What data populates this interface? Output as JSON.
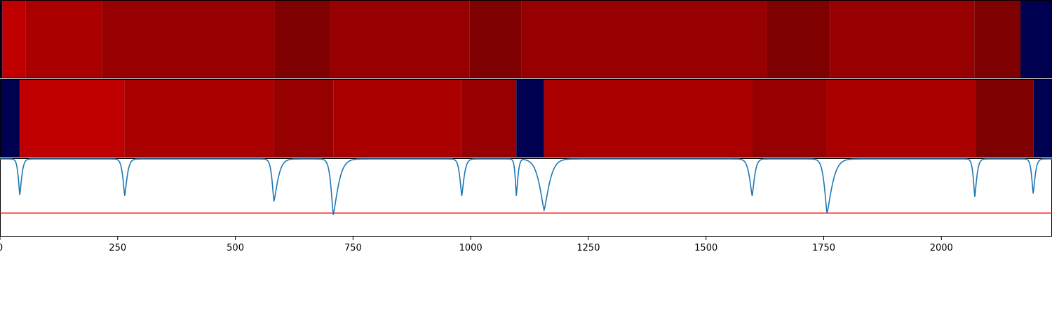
{
  "chart_data": [
    {
      "type": "heatmap",
      "panel": "top",
      "x_range": [
        0,
        2235
      ],
      "segments": [
        {
          "x0": 0,
          "x1": 5,
          "color": "#000050"
        },
        {
          "x0": 5,
          "x1": 55,
          "color": "#c00000"
        },
        {
          "x0": 55,
          "x1": 217,
          "color": "#aa0000"
        },
        {
          "x0": 217,
          "x1": 584,
          "color": "#960000"
        },
        {
          "x0": 584,
          "x1": 701,
          "color": "#7e0000"
        },
        {
          "x0": 701,
          "x1": 998,
          "color": "#960000"
        },
        {
          "x0": 998,
          "x1": 1108,
          "color": "#7e0000"
        },
        {
          "x0": 1108,
          "x1": 1630,
          "color": "#960000"
        },
        {
          "x0": 1630,
          "x1": 1763,
          "color": "#7e0000"
        },
        {
          "x0": 1763,
          "x1": 2070,
          "color": "#960000"
        },
        {
          "x0": 2070,
          "x1": 2168,
          "color": "#7e0000"
        },
        {
          "x0": 2168,
          "x1": 2235,
          "color": "#000050"
        }
      ]
    },
    {
      "type": "heatmap",
      "panel": "middle",
      "x_range": [
        0,
        2235
      ],
      "segments": [
        {
          "x0": 0,
          "x1": 42,
          "color": "#000050"
        },
        {
          "x0": 42,
          "x1": 264,
          "color": "#c00000"
        },
        {
          "x0": 264,
          "x1": 582,
          "color": "#aa0000"
        },
        {
          "x0": 582,
          "x1": 708,
          "color": "#960000"
        },
        {
          "x0": 708,
          "x1": 980,
          "color": "#aa0000"
        },
        {
          "x0": 980,
          "x1": 1097,
          "color": "#960000"
        },
        {
          "x0": 1097,
          "x1": 1156,
          "color": "#000050"
        },
        {
          "x0": 1156,
          "x1": 1598,
          "color": "#aa0000"
        },
        {
          "x0": 1598,
          "x1": 1756,
          "color": "#960000"
        },
        {
          "x0": 1756,
          "x1": 2072,
          "color": "#aa0000"
        },
        {
          "x0": 2072,
          "x1": 2196,
          "color": "#7e0000"
        },
        {
          "x0": 2196,
          "x1": 2235,
          "color": "#000050"
        }
      ]
    },
    {
      "type": "line",
      "panel": "bottom",
      "x_range": [
        0,
        2235
      ],
      "y_range": [
        0,
        1
      ],
      "baseline": 0.99,
      "threshold": 0.3,
      "threshold_color": "#ff0000",
      "series_color": "#1f77b4",
      "dips": [
        {
          "x": 42,
          "min": 0.53,
          "left_w": 8,
          "right_w": 10
        },
        {
          "x": 265,
          "min": 0.52,
          "left_w": 10,
          "right_w": 12
        },
        {
          "x": 582,
          "min": 0.45,
          "left_w": 10,
          "right_w": 20
        },
        {
          "x": 708,
          "min": 0.28,
          "left_w": 12,
          "right_w": 25
        },
        {
          "x": 981,
          "min": 0.52,
          "left_w": 10,
          "right_w": 12
        },
        {
          "x": 1097,
          "min": 0.52,
          "left_w": 6,
          "right_w": 8
        },
        {
          "x": 1156,
          "min": 0.34,
          "left_w": 25,
          "right_w": 26
        },
        {
          "x": 1598,
          "min": 0.52,
          "left_w": 14,
          "right_w": 12
        },
        {
          "x": 1757,
          "min": 0.3,
          "left_w": 14,
          "right_w": 26
        },
        {
          "x": 2071,
          "min": 0.51,
          "left_w": 8,
          "right_w": 10
        },
        {
          "x": 2195,
          "min": 0.55,
          "left_w": 8,
          "right_w": 10
        }
      ],
      "xticks": [
        "0",
        "250",
        "500",
        "750",
        "1000",
        "1250",
        "1500",
        "1750",
        "2000"
      ],
      "xtick_values": [
        0,
        250,
        500,
        750,
        1000,
        1250,
        1500,
        1750,
        2000
      ]
    }
  ]
}
